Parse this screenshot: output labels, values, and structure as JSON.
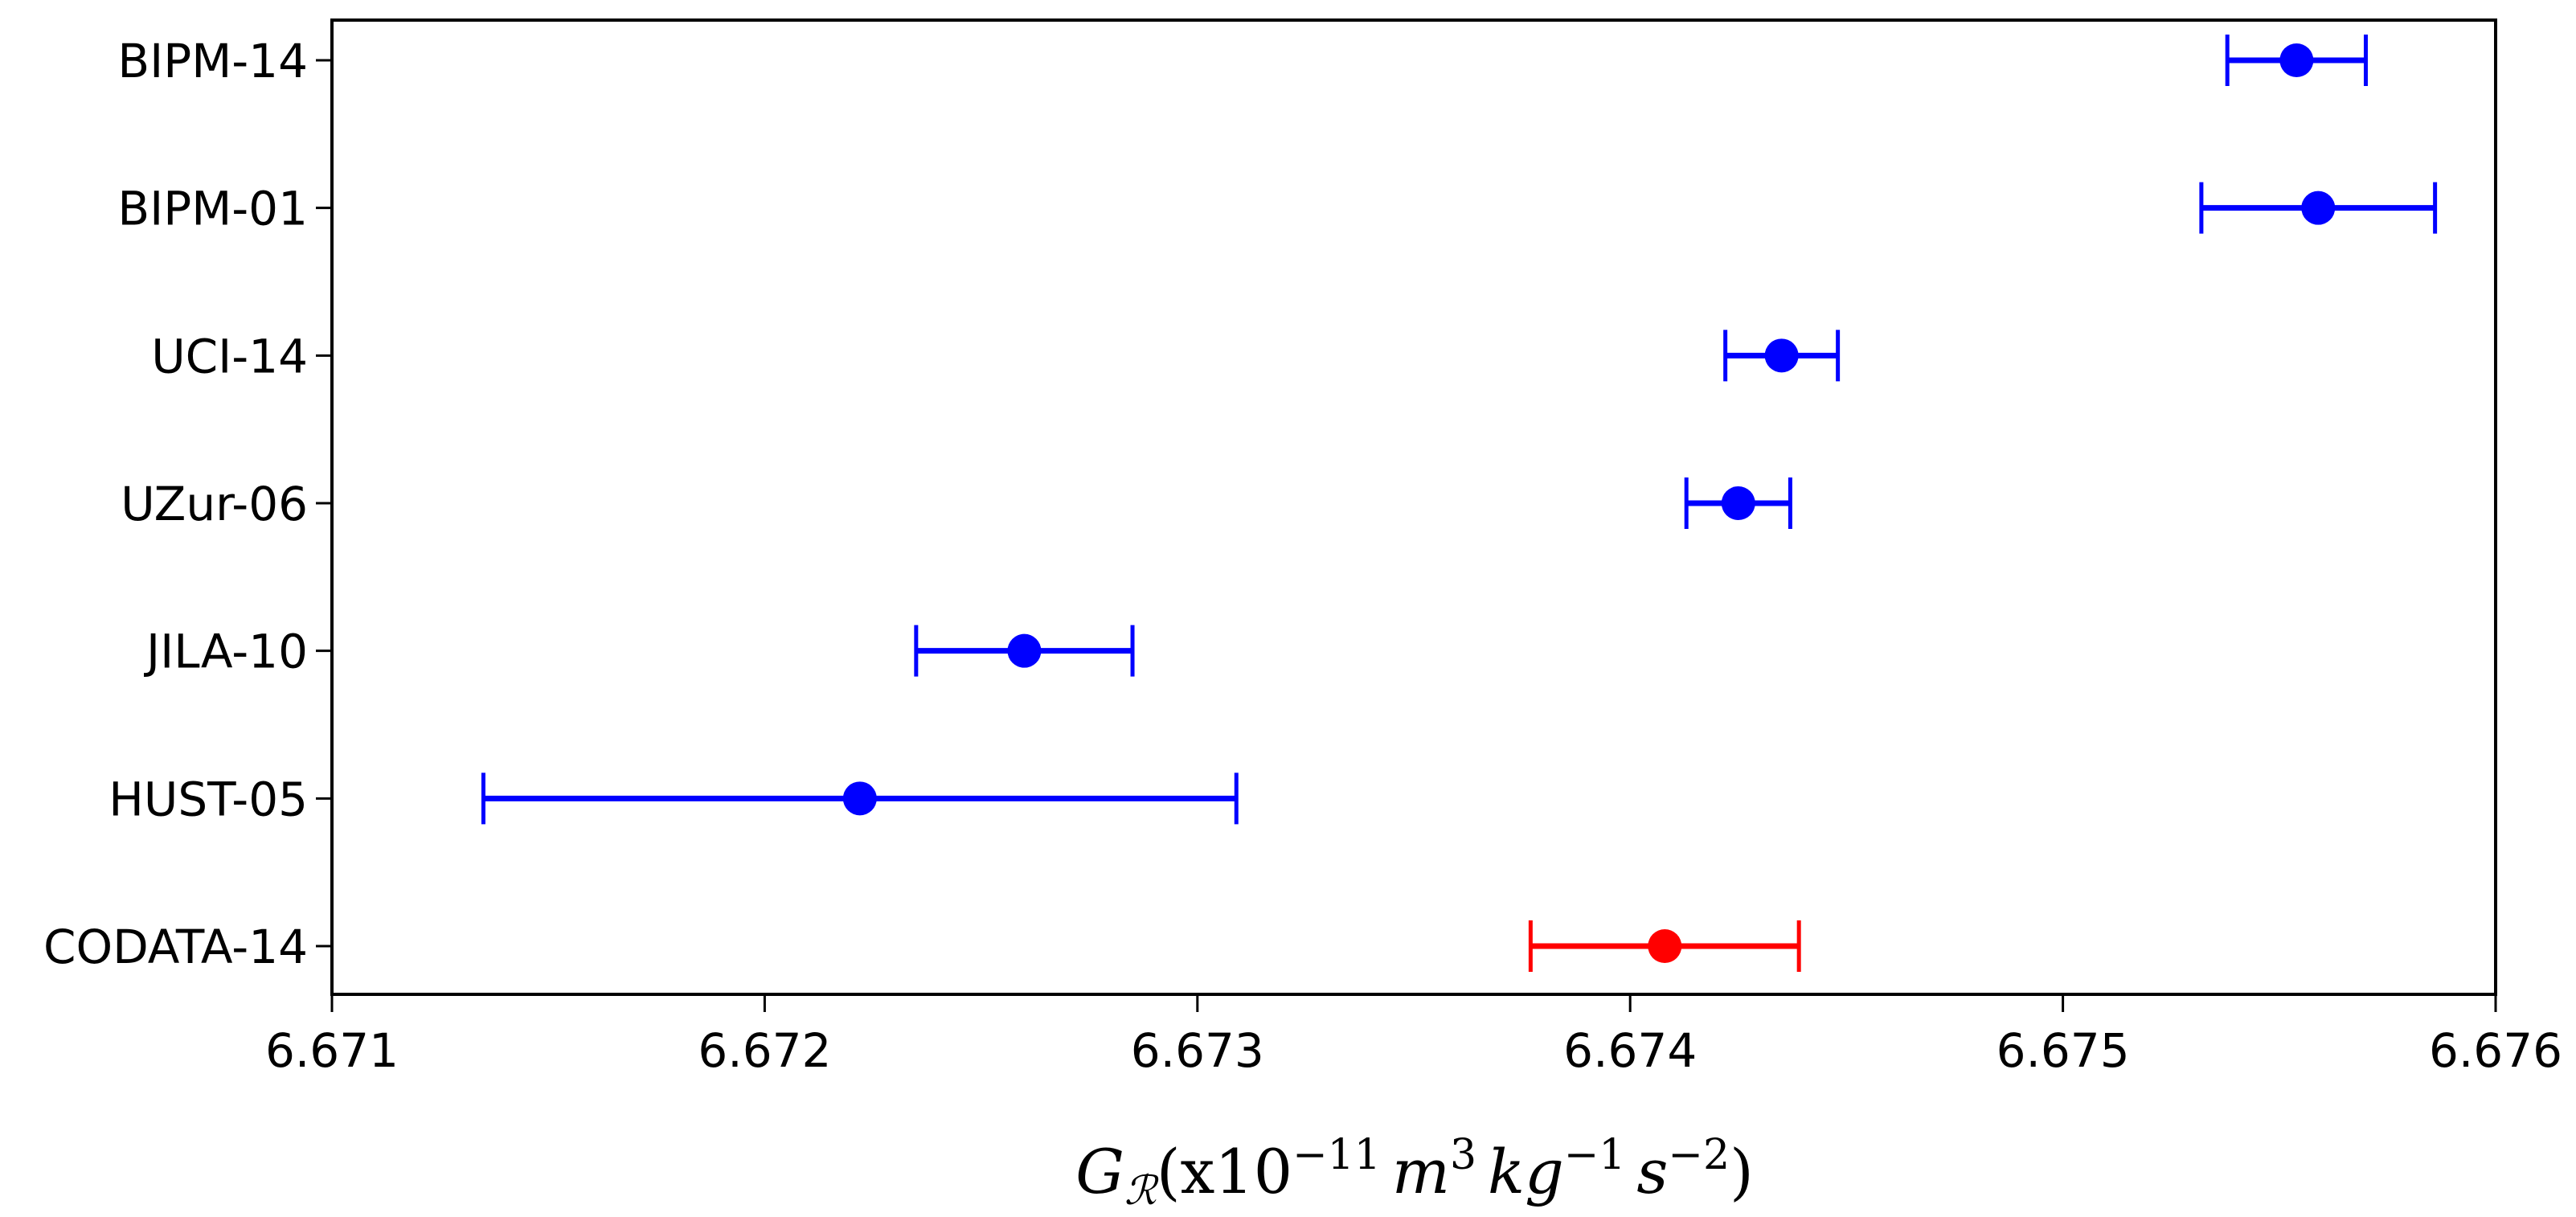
{
  "chart_data": {
    "type": "scatter",
    "subtype": "errorbar",
    "title": "",
    "xlabel": "G_R(x10^-11 m^3 kg^-1 s^-2)",
    "ylabel": "",
    "xlim": [
      6.671,
      6.676
    ],
    "x_ticks": [
      6.671,
      6.672,
      6.673,
      6.674,
      6.675,
      6.676
    ],
    "x_tick_labels": [
      "6.671",
      "6.672",
      "6.673",
      "6.674",
      "6.675",
      "6.676"
    ],
    "grid": false,
    "legend": null,
    "categories": [
      "BIPM-14",
      "BIPM-01",
      "UCI-14",
      "UZur-06",
      "JILA-10",
      "HUST-05",
      "CODATA-14"
    ],
    "series": [
      {
        "name": "Measurements",
        "color": "#0000ff",
        "points": [
          {
            "label": "BIPM-14",
            "value": 6.67554,
            "error": 0.00016
          },
          {
            "label": "BIPM-01",
            "value": 6.67559,
            "error": 0.00027
          },
          {
            "label": "UCI-14",
            "value": 6.67435,
            "error": 0.00013
          },
          {
            "label": "UZur-06",
            "value": 6.67425,
            "error": 0.00012
          },
          {
            "label": "JILA-10",
            "value": 6.6726,
            "error": 0.00025
          },
          {
            "label": "HUST-05",
            "value": 6.67222,
            "error": 0.00087
          }
        ]
      },
      {
        "name": "CODATA-14",
        "color": "#ff0000",
        "points": [
          {
            "label": "CODATA-14",
            "value": 6.67408,
            "error": 0.00031
          }
        ]
      }
    ]
  },
  "axis": {
    "xlabel_parts": {
      "symbol": "G",
      "subscript": "ℛ",
      "open": "(x10",
      "exp1": "−11",
      "m": "m",
      "exp2": "3",
      "kg": "kg",
      "exp3": "−1",
      "s": "s",
      "exp4": "−2",
      "close": ")"
    }
  }
}
